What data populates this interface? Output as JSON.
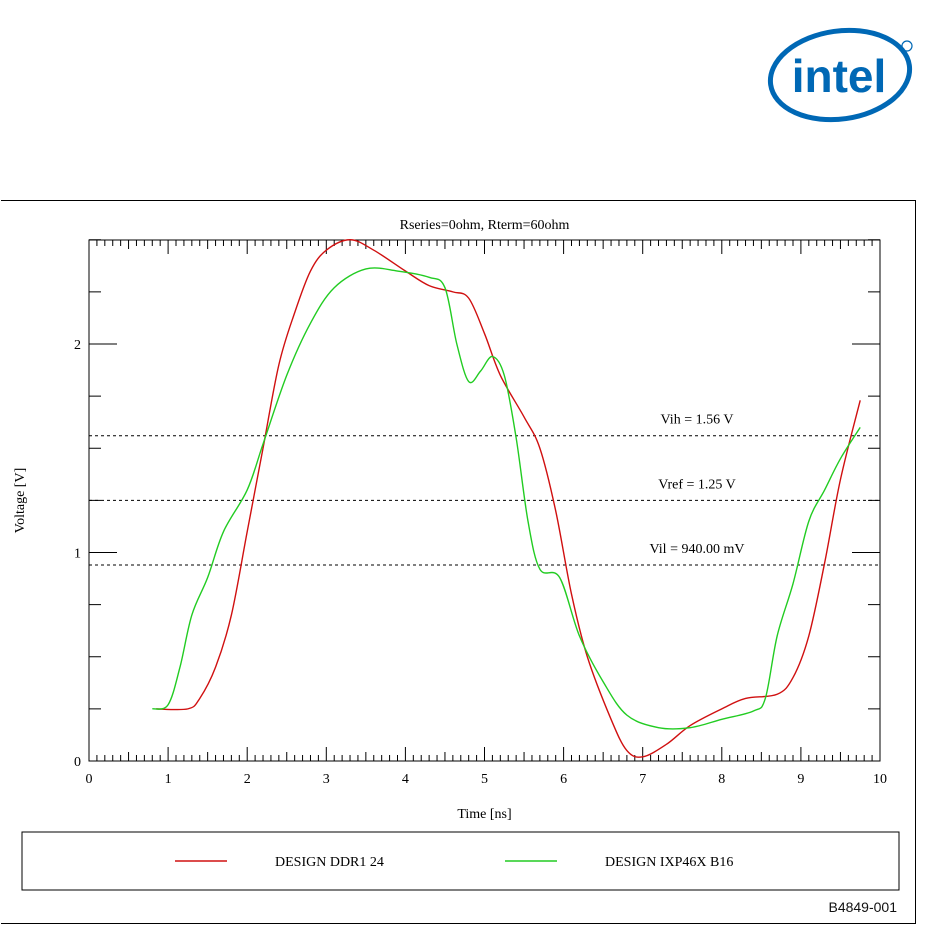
{
  "logo": {
    "text": "intel",
    "color": "#0068b5"
  },
  "figure_id": "B4849-001",
  "chart_data": {
    "type": "line",
    "title": "Rseries=0ohm, Rterm=60ohm",
    "xlabel": "Time [ns]",
    "ylabel": "Voltage [V]",
    "xlim": [
      0,
      10
    ],
    "ylim": [
      0,
      2.5
    ],
    "xticks": [
      "0",
      "1",
      "2",
      "3",
      "4",
      "5",
      "6",
      "7",
      "8",
      "9",
      "10"
    ],
    "yticks": [
      "0",
      "1",
      "2"
    ],
    "legend_position": "bottom",
    "reference_lines": [
      {
        "label": "Vih = 1.56 V",
        "value": 1.56
      },
      {
        "label": "Vref = 1.25 V",
        "value": 1.25
      },
      {
        "label": "Vil = 940.00 mV",
        "value": 0.94
      }
    ],
    "series": [
      {
        "name": "DESIGN DDR1 24",
        "color": "#d01010",
        "x": [
          0.85,
          1.25,
          1.4,
          1.6,
          1.8,
          2.0,
          2.2,
          2.4,
          2.6,
          2.8,
          3.0,
          3.3,
          3.6,
          4.0,
          4.3,
          4.6,
          4.8,
          5.0,
          5.2,
          5.5,
          5.7,
          5.9,
          6.1,
          6.3,
          6.6,
          6.8,
          7.0,
          7.3,
          7.6,
          8.0,
          8.3,
          8.7,
          8.9,
          9.1,
          9.3,
          9.5,
          9.75
        ],
        "y": [
          0.25,
          0.25,
          0.3,
          0.45,
          0.7,
          1.1,
          1.5,
          1.9,
          2.15,
          2.35,
          2.45,
          2.5,
          2.45,
          2.35,
          2.28,
          2.25,
          2.22,
          2.05,
          1.85,
          1.65,
          1.5,
          1.2,
          0.8,
          0.5,
          0.2,
          0.05,
          0.02,
          0.08,
          0.17,
          0.25,
          0.3,
          0.32,
          0.4,
          0.6,
          0.95,
          1.35,
          1.73
        ]
      },
      {
        "name": "DESIGN IXP46X B16",
        "color": "#22cc22",
        "x": [
          0.8,
          1.0,
          1.15,
          1.3,
          1.5,
          1.7,
          2.0,
          2.2,
          2.5,
          2.8,
          3.1,
          3.5,
          3.9,
          4.3,
          4.5,
          4.65,
          4.8,
          4.95,
          5.1,
          5.25,
          5.4,
          5.55,
          5.7,
          5.95,
          6.2,
          6.5,
          6.8,
          7.2,
          7.6,
          8.0,
          8.4,
          8.55,
          8.7,
          8.9,
          9.1,
          9.3,
          9.5,
          9.75
        ],
        "y": [
          0.25,
          0.27,
          0.45,
          0.7,
          0.88,
          1.1,
          1.3,
          1.52,
          1.85,
          2.1,
          2.27,
          2.36,
          2.35,
          2.32,
          2.27,
          2.0,
          1.82,
          1.87,
          1.94,
          1.85,
          1.55,
          1.15,
          0.92,
          0.88,
          0.6,
          0.38,
          0.22,
          0.16,
          0.16,
          0.2,
          0.24,
          0.3,
          0.6,
          0.85,
          1.15,
          1.3,
          1.45,
          1.6
        ]
      }
    ]
  }
}
